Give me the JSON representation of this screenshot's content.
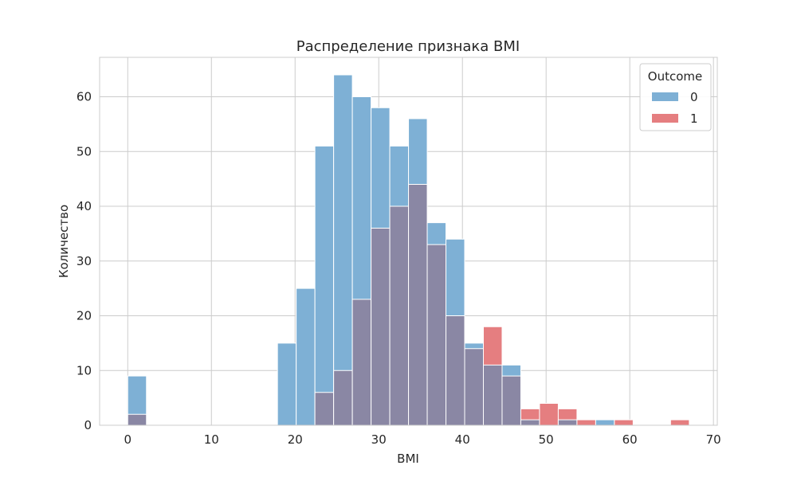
{
  "chart_data": {
    "type": "bar",
    "title": "Распределение признака BMI",
    "xlabel": "BMI",
    "ylabel": "Количество",
    "xlim": [
      -3.36,
      70.46
    ],
    "ylim": [
      0,
      67.2
    ],
    "xticks": [
      0,
      10,
      20,
      30,
      40,
      50,
      60,
      70
    ],
    "yticks": [
      0,
      10,
      20,
      30,
      40,
      50,
      60
    ],
    "grid": true,
    "legend": {
      "title": "Outcome",
      "placement": "top-right",
      "entries": [
        "0",
        "1"
      ]
    },
    "bin_width": 2.237,
    "bin_starts": [
      0,
      2.237,
      4.474,
      6.711,
      8.948,
      11.185,
      13.422,
      15.659,
      17.896,
      20.133,
      22.37,
      24.607,
      26.844,
      29.081,
      31.318,
      33.555,
      35.792,
      38.029,
      40.266,
      42.503,
      44.74,
      46.977,
      49.214,
      51.451,
      53.688,
      55.925,
      58.162,
      60.399,
      62.636,
      64.873
    ],
    "series": [
      {
        "name": "0",
        "color": "#7eb0d5",
        "values": [
          9,
          0,
          0,
          0,
          0,
          0,
          0,
          0,
          15,
          25,
          51,
          64,
          60,
          58,
          51,
          56,
          37,
          34,
          15,
          11,
          11,
          1,
          0,
          1,
          0,
          1,
          0,
          0,
          0,
          0
        ]
      },
      {
        "name": "1",
        "color": "#e57e80",
        "values": [
          2,
          0,
          0,
          0,
          0,
          0,
          0,
          0,
          0,
          0,
          6,
          10,
          23,
          36,
          40,
          44,
          33,
          20,
          14,
          18,
          9,
          3,
          4,
          3,
          1,
          0,
          1,
          0,
          0,
          1
        ]
      }
    ],
    "overlap_color": "#8a87a4"
  }
}
